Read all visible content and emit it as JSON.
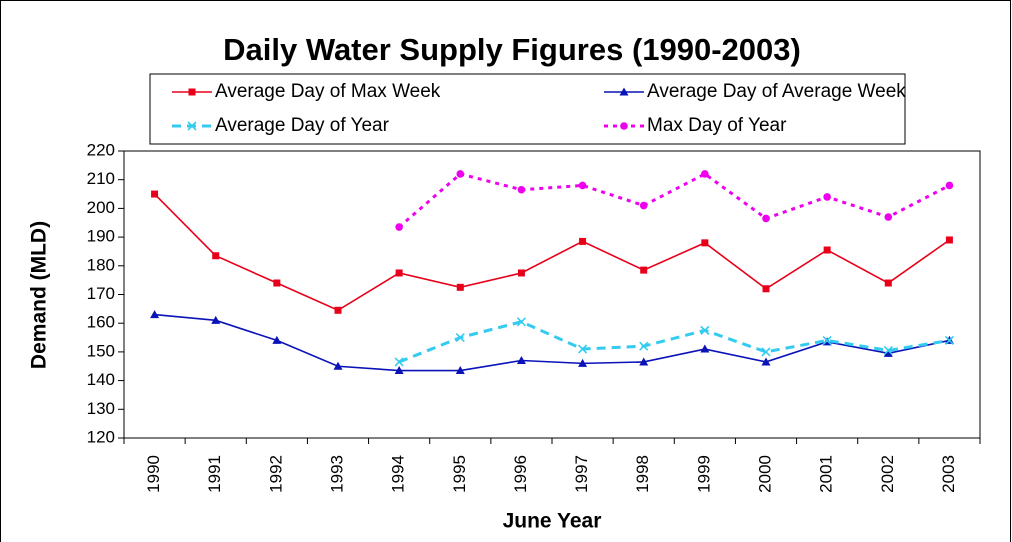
{
  "chart_data": {
    "type": "line",
    "title": "Daily Water Supply Figures (1990-2003)",
    "x_label": "June Year",
    "y_label": "Demand (MLD)",
    "categories": [
      "1990",
      "1991",
      "1992",
      "1993",
      "1994",
      "1995",
      "1996",
      "1997",
      "1998",
      "1999",
      "2000",
      "2001",
      "2002",
      "2003"
    ],
    "series": [
      {
        "name": "Average Day of Max Week",
        "color": "#e8001a",
        "dash": "solid",
        "marker": "square",
        "values": [
          205,
          183.5,
          174,
          164.5,
          177.5,
          172.5,
          177.5,
          188.5,
          178.5,
          188,
          172,
          185.5,
          174,
          189
        ]
      },
      {
        "name": "Average Day of Average Week",
        "color": "#0a12b8",
        "dash": "solid",
        "marker": "triangle",
        "values": [
          163,
          161,
          154,
          145,
          143.5,
          143.5,
          147,
          146,
          146.5,
          151,
          146.5,
          153.5,
          149.5,
          154
        ]
      },
      {
        "name": "Average Day of Year",
        "color": "#33ccf0",
        "dash": "dashed",
        "marker": "x",
        "values": [
          null,
          null,
          null,
          null,
          146.5,
          155,
          160.5,
          151,
          152,
          157.5,
          150,
          154,
          150.5,
          154
        ]
      },
      {
        "name": "Max Day of Year",
        "color": "#ee00ee",
        "dash": "dotted",
        "marker": "circle",
        "values": [
          null,
          null,
          null,
          null,
          193.5,
          212,
          206.5,
          208,
          201,
          212,
          196.5,
          204,
          197,
          208
        ]
      }
    ],
    "ylim": [
      120,
      220
    ],
    "yticks": [
      120,
      130,
      140,
      150,
      160,
      170,
      180,
      190,
      200,
      210,
      220
    ],
    "grid": false,
    "legend": "top"
  }
}
